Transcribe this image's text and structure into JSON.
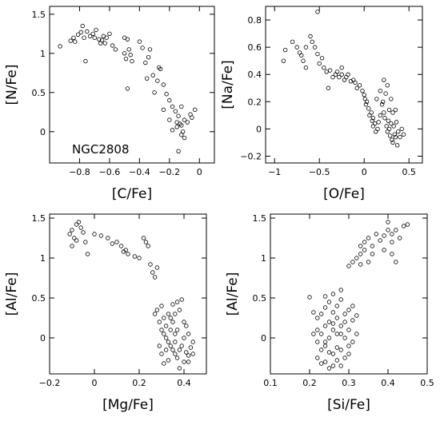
{
  "chart_data": [
    {
      "type": "scatter",
      "panel": "top-left",
      "xlabel": "[C/Fe]",
      "ylabel": "[N/Fe]",
      "annotation": "NGC2808",
      "xlim": [
        -1.0,
        0.1
      ],
      "ylim": [
        -0.4,
        1.6
      ],
      "xticks": [
        -0.8,
        -0.6,
        -0.4,
        -0.2,
        0
      ],
      "xtick_labels": [
        "−0.8",
        "−0.6",
        "−0.4",
        "−0.2",
        "0"
      ],
      "yticks": [
        0,
        0.5,
        1,
        1.5
      ],
      "ytick_labels": [
        "0",
        "0.5",
        "1",
        "1.5"
      ],
      "points": [
        [
          -0.93,
          1.09
        ],
        [
          -0.86,
          1.16
        ],
        [
          -0.84,
          1.2
        ],
        [
          -0.83,
          1.15
        ],
        [
          -0.81,
          1.24
        ],
        [
          -0.79,
          1.27
        ],
        [
          -0.78,
          1.35
        ],
        [
          -0.77,
          1.2
        ],
        [
          -0.76,
          0.9
        ],
        [
          -0.75,
          1.28
        ],
        [
          -0.73,
          1.22
        ],
        [
          -0.71,
          1.25
        ],
        [
          -0.7,
          1.2
        ],
        [
          -0.69,
          1.3
        ],
        [
          -0.67,
          1.18
        ],
        [
          -0.66,
          1.13
        ],
        [
          -0.65,
          1.17
        ],
        [
          -0.64,
          1.22
        ],
        [
          -0.63,
          1.13
        ],
        [
          -0.62,
          1.2
        ],
        [
          -0.6,
          1.25
        ],
        [
          -0.58,
          1.1
        ],
        [
          -0.56,
          1.05
        ],
        [
          -0.5,
          1.2
        ],
        [
          -0.48,
          1.18
        ],
        [
          -0.5,
          1.0
        ],
        [
          -0.49,
          0.93
        ],
        [
          -0.47,
          1.05
        ],
        [
          -0.46,
          0.98
        ],
        [
          -0.45,
          0.9
        ],
        [
          -0.48,
          0.55
        ],
        [
          -0.4,
          1.15
        ],
        [
          -0.38,
          1.07
        ],
        [
          -0.36,
          0.88
        ],
        [
          -0.34,
          0.95
        ],
        [
          -0.33,
          1.05
        ],
        [
          -0.35,
          0.68
        ],
        [
          -0.31,
          0.72
        ],
        [
          -0.28,
          0.65
        ],
        [
          -0.26,
          0.8
        ],
        [
          -0.27,
          0.82
        ],
        [
          -0.24,
          0.6
        ],
        [
          -0.3,
          0.5
        ],
        [
          -0.22,
          0.48
        ],
        [
          -0.2,
          0.4
        ],
        [
          -0.24,
          0.28
        ],
        [
          -0.18,
          0.32
        ],
        [
          -0.16,
          0.26
        ],
        [
          -0.2,
          0.15
        ],
        [
          -0.14,
          0.2
        ],
        [
          -0.18,
          0.02
        ],
        [
          -0.15,
          0.06
        ],
        [
          -0.14,
          -0.25
        ],
        [
          -0.12,
          0.08
        ],
        [
          -0.12,
          -0.04
        ],
        [
          -0.1,
          0.15
        ],
        [
          -0.08,
          0.12
        ],
        [
          -0.06,
          0.22
        ],
        [
          -0.05,
          0.18
        ],
        [
          -0.03,
          0.28
        ],
        [
          -0.13,
          0.1
        ],
        [
          -0.11,
          0.0
        ],
        [
          -0.1,
          -0.08
        ],
        [
          -0.15,
          0.12
        ],
        [
          -0.12,
          0.32
        ]
      ]
    },
    {
      "type": "scatter",
      "panel": "top-right",
      "xlabel": "[O/Fe]",
      "ylabel": "[Na/Fe]",
      "xlim": [
        -1.1,
        0.65
      ],
      "ylim": [
        -0.25,
        0.9
      ],
      "xticks": [
        -1,
        -0.5,
        0,
        0.5
      ],
      "xtick_labels": [
        "−1",
        "−0.5",
        "0",
        "0.5"
      ],
      "yticks": [
        -0.2,
        0,
        0.2,
        0.4,
        0.6,
        0.8
      ],
      "ytick_labels": [
        "−0.2",
        "0",
        "0.2",
        "0.4",
        "0.6",
        "0.8"
      ],
      "points": [
        [
          -0.52,
          0.86
        ],
        [
          -0.88,
          0.58
        ],
        [
          -0.8,
          0.64
        ],
        [
          -0.75,
          0.6
        ],
        [
          -0.72,
          0.56
        ],
        [
          -0.7,
          0.54
        ],
        [
          -0.68,
          0.5
        ],
        [
          -0.65,
          0.6
        ],
        [
          -0.6,
          0.68
        ],
        [
          -0.58,
          0.64
        ],
        [
          -0.55,
          0.6
        ],
        [
          -0.52,
          0.55
        ],
        [
          -0.5,
          0.48
        ],
        [
          -0.47,
          0.52
        ],
        [
          -0.45,
          0.45
        ],
        [
          -0.42,
          0.42
        ],
        [
          -0.38,
          0.43
        ],
        [
          -0.35,
          0.38
        ],
        [
          -0.32,
          0.4
        ],
        [
          -0.3,
          0.42
        ],
        [
          -0.28,
          0.38
        ],
        [
          -0.25,
          0.4
        ],
        [
          -0.22,
          0.36
        ],
        [
          -0.2,
          0.38
        ],
        [
          -0.18,
          0.4
        ],
        [
          -0.15,
          0.35
        ],
        [
          -0.12,
          0.36
        ],
        [
          -0.1,
          0.34
        ],
        [
          -0.08,
          0.3
        ],
        [
          -0.05,
          0.32
        ],
        [
          -0.02,
          0.28
        ],
        [
          0.0,
          0.25
        ],
        [
          0.01,
          0.22
        ],
        [
          0.02,
          0.18
        ],
        [
          0.03,
          0.2
        ],
        [
          0.05,
          0.15
        ],
        [
          0.06,
          0.1
        ],
        [
          0.08,
          0.12
        ],
        [
          0.09,
          0.06
        ],
        [
          0.1,
          0.08
        ],
        [
          0.1,
          0.02
        ],
        [
          0.12,
          0.04
        ],
        [
          0.13,
          -0.02
        ],
        [
          0.15,
          0.0
        ],
        [
          0.16,
          0.05
        ],
        [
          0.18,
          0.1
        ],
        [
          0.2,
          0.18
        ],
        [
          0.21,
          0.2
        ],
        [
          0.22,
          0.12
        ],
        [
          0.23,
          0.08
        ],
        [
          0.25,
          0.02
        ],
        [
          0.26,
          -0.02
        ],
        [
          0.27,
          0.06
        ],
        [
          0.28,
          0.0
        ],
        [
          0.29,
          -0.05
        ],
        [
          0.3,
          0.04
        ],
        [
          0.31,
          -0.08
        ],
        [
          0.32,
          -0.1
        ],
        [
          0.33,
          0.02
        ],
        [
          0.34,
          -0.04
        ],
        [
          0.35,
          -0.06
        ],
        [
          0.36,
          0.05
        ],
        [
          0.37,
          -0.12
        ],
        [
          0.38,
          -0.02
        ],
        [
          0.4,
          -0.06
        ],
        [
          0.42,
          0.0
        ],
        [
          0.44,
          -0.04
        ],
        [
          0.28,
          0.14
        ],
        [
          0.24,
          0.26
        ],
        [
          0.3,
          0.22
        ],
        [
          0.18,
          0.28
        ],
        [
          0.26,
          0.32
        ],
        [
          0.22,
          0.36
        ],
        [
          0.32,
          0.12
        ],
        [
          0.35,
          0.14
        ],
        [
          0.14,
          0.22
        ],
        [
          -0.9,
          0.5
        ],
        [
          -0.65,
          0.45
        ],
        [
          -0.4,
          0.3
        ],
        [
          -0.25,
          0.45
        ]
      ]
    },
    {
      "type": "scatter",
      "panel": "bottom-left",
      "xlabel": "[Mg/Fe]",
      "ylabel": "[Al/Fe]",
      "xlim": [
        -0.2,
        0.5
      ],
      "ylim": [
        -0.45,
        1.55
      ],
      "xticks": [
        -0.2,
        0,
        0.2,
        0.4
      ],
      "xtick_labels": [
        "−0.2",
        "0",
        "0.2",
        "0.4"
      ],
      "yticks": [
        0,
        0.5,
        1,
        1.5
      ],
      "ytick_labels": [
        "0",
        "0.5",
        "1",
        "1.5"
      ],
      "points": [
        [
          -0.11,
          1.3
        ],
        [
          -0.1,
          1.35
        ],
        [
          -0.09,
          1.25
        ],
        [
          -0.08,
          1.42
        ],
        [
          -0.07,
          1.45
        ],
        [
          -0.06,
          1.38
        ],
        [
          -0.05,
          1.32
        ],
        [
          -0.04,
          1.2
        ],
        [
          -0.03,
          1.05
        ],
        [
          -0.1,
          1.15
        ],
        [
          -0.08,
          1.22
        ],
        [
          0.0,
          1.3
        ],
        [
          0.03,
          1.28
        ],
        [
          0.06,
          1.25
        ],
        [
          0.08,
          1.18
        ],
        [
          0.1,
          1.2
        ],
        [
          0.12,
          1.15
        ],
        [
          0.13,
          1.08
        ],
        [
          0.14,
          1.1
        ],
        [
          0.15,
          1.05
        ],
        [
          0.18,
          1.02
        ],
        [
          0.2,
          1.0
        ],
        [
          0.22,
          1.25
        ],
        [
          0.23,
          1.2
        ],
        [
          0.24,
          1.15
        ],
        [
          0.25,
          0.92
        ],
        [
          0.26,
          0.82
        ],
        [
          0.27,
          0.76
        ],
        [
          0.28,
          0.88
        ],
        [
          0.27,
          0.3
        ],
        [
          0.28,
          0.35
        ],
        [
          0.29,
          0.2
        ],
        [
          0.3,
          0.1
        ],
        [
          0.3,
          0.4
        ],
        [
          0.31,
          0.05
        ],
        [
          0.31,
          0.25
        ],
        [
          0.32,
          0.0
        ],
        [
          0.32,
          0.15
        ],
        [
          0.33,
          -0.05
        ],
        [
          0.33,
          0.3
        ],
        [
          0.34,
          -0.1
        ],
        [
          0.34,
          0.1
        ],
        [
          0.35,
          -0.15
        ],
        [
          0.35,
          0.2
        ],
        [
          0.36,
          -0.2
        ],
        [
          0.36,
          0.05
        ],
        [
          0.37,
          -0.25
        ],
        [
          0.37,
          0.1
        ],
        [
          0.38,
          -0.15
        ],
        [
          0.38,
          0.35
        ],
        [
          0.39,
          -0.1
        ],
        [
          0.39,
          0.48
        ],
        [
          0.4,
          0.0
        ],
        [
          0.4,
          -0.3
        ],
        [
          0.41,
          -0.18
        ],
        [
          0.41,
          0.15
        ],
        [
          0.42,
          -0.22
        ],
        [
          0.42,
          0.05
        ],
        [
          0.43,
          -0.12
        ],
        [
          0.44,
          -0.05
        ],
        [
          0.3,
          -0.2
        ],
        [
          0.31,
          -0.32
        ],
        [
          0.33,
          -0.28
        ],
        [
          0.35,
          0.42
        ],
        [
          0.36,
          0.3
        ],
        [
          0.37,
          0.45
        ],
        [
          0.38,
          -0.38
        ],
        [
          0.34,
          0.25
        ],
        [
          0.29,
          -0.1
        ],
        [
          0.32,
          -0.15
        ],
        [
          0.36,
          -0.05
        ],
        [
          0.4,
          0.2
        ],
        [
          0.42,
          -0.3
        ],
        [
          0.44,
          -0.2
        ]
      ]
    },
    {
      "type": "scatter",
      "panel": "bottom-right",
      "xlabel": "[Si/Fe]",
      "ylabel": "[Al/Fe]",
      "xlim": [
        0.1,
        0.5
      ],
      "ylim": [
        -0.45,
        1.55
      ],
      "xticks": [
        0.1,
        0.2,
        0.3,
        0.4,
        0.5
      ],
      "xtick_labels": [
        "0.1",
        "0.2",
        "0.3",
        "0.4",
        "0.5"
      ],
      "yticks": [
        0,
        0.5,
        1,
        1.5
      ],
      "ytick_labels": [
        "0",
        "0.5",
        "1",
        "1.5"
      ],
      "points": [
        [
          0.2,
          0.51
        ],
        [
          0.21,
          0.32
        ],
        [
          0.22,
          0.25
        ],
        [
          0.22,
          0.1
        ],
        [
          0.22,
          -0.05
        ],
        [
          0.23,
          0.3
        ],
        [
          0.23,
          0.05
        ],
        [
          0.23,
          -0.15
        ],
        [
          0.24,
          0.38
        ],
        [
          0.24,
          0.15
        ],
        [
          0.24,
          -0.1
        ],
        [
          0.24,
          -0.3
        ],
        [
          0.25,
          0.0
        ],
        [
          0.25,
          0.2
        ],
        [
          0.25,
          -0.18
        ],
        [
          0.25,
          0.45
        ],
        [
          0.26,
          -0.2
        ],
        [
          0.26,
          0.1
        ],
        [
          0.26,
          0.32
        ],
        [
          0.26,
          -0.35
        ],
        [
          0.27,
          0.05
        ],
        [
          0.27,
          -0.12
        ],
        [
          0.27,
          0.25
        ],
        [
          0.28,
          -0.15
        ],
        [
          0.28,
          0.15
        ],
        [
          0.28,
          0.48
        ],
        [
          0.29,
          0.3
        ],
        [
          0.29,
          0.0
        ],
        [
          0.29,
          -0.25
        ],
        [
          0.3,
          0.1
        ],
        [
          0.3,
          0.35
        ],
        [
          0.3,
          -0.1
        ],
        [
          0.31,
          0.22
        ],
        [
          0.31,
          0.4
        ],
        [
          0.32,
          0.05
        ],
        [
          0.32,
          0.28
        ],
        [
          0.3,
          0.9
        ],
        [
          0.31,
          0.95
        ],
        [
          0.32,
          1.0
        ],
        [
          0.33,
          1.05
        ],
        [
          0.33,
          1.15
        ],
        [
          0.34,
          1.1
        ],
        [
          0.34,
          1.2
        ],
        [
          0.35,
          1.25
        ],
        [
          0.36,
          1.15
        ],
        [
          0.36,
          1.05
        ],
        [
          0.37,
          1.3
        ],
        [
          0.38,
          1.22
        ],
        [
          0.39,
          1.28
        ],
        [
          0.4,
          1.45
        ],
        [
          0.4,
          1.35
        ],
        [
          0.41,
          1.3
        ],
        [
          0.41,
          1.2
        ],
        [
          0.42,
          1.35
        ],
        [
          0.43,
          1.25
        ],
        [
          0.44,
          1.4
        ],
        [
          0.45,
          1.42
        ],
        [
          0.39,
          1.1
        ],
        [
          0.41,
          1.05
        ],
        [
          0.42,
          0.95
        ],
        [
          0.35,
          0.95
        ],
        [
          0.33,
          0.92
        ],
        [
          0.28,
          0.6
        ],
        [
          0.26,
          0.55
        ],
        [
          0.24,
          0.52
        ],
        [
          0.22,
          -0.25
        ],
        [
          0.23,
          -0.32
        ],
        [
          0.25,
          -0.38
        ],
        [
          0.27,
          -0.28
        ],
        [
          0.28,
          -0.35
        ],
        [
          0.3,
          -0.2
        ],
        [
          0.29,
          0.2
        ],
        [
          0.27,
          0.4
        ],
        [
          0.21,
          0.05
        ],
        [
          0.24,
          -0.05
        ],
        [
          0.26,
          0.18
        ],
        [
          0.28,
          0.05
        ],
        [
          0.31,
          -0.05
        ]
      ]
    }
  ]
}
